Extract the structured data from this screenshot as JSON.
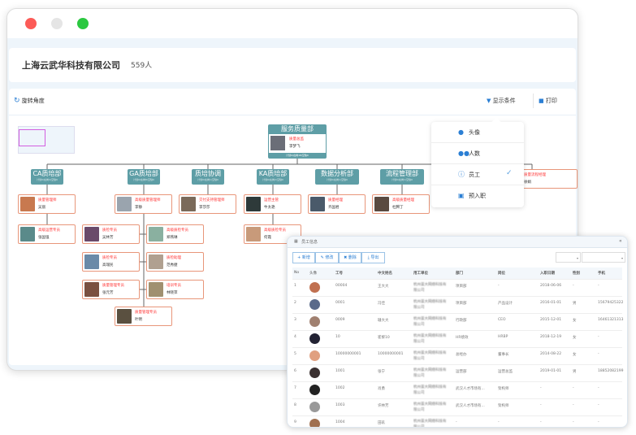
{
  "header": {
    "company": "上海云武华科技有限公司",
    "count": "559人"
  },
  "toolbar": {
    "rotate": "旋转角度",
    "filter": "显示条件",
    "print": "打印"
  },
  "display_menu": {
    "items": [
      {
        "label": "头像",
        "icon": "user-icon"
      },
      {
        "label": "人数",
        "icon": "users-icon"
      },
      {
        "label": "员工",
        "icon": "info-icon",
        "checked": true
      },
      {
        "label": "预入职",
        "icon": "briefcase-icon"
      }
    ]
  },
  "org": {
    "root": {
      "title": "服务质量部",
      "role": "质量总监",
      "name": "李梦飞",
      "stats": "计划0/在岗18/空缺0"
    },
    "depts": [
      {
        "title": "CA质培部",
        "stats": "计划0/在岗4/空缺0"
      },
      {
        "title": "GA质培部",
        "stats": "计划0/在岗8/空缺0"
      },
      {
        "title": "质培协调",
        "stats": "计划0/在岗1/空缺0"
      },
      {
        "title": "KA质培部",
        "stats": "计划0/在岗2/空缺0"
      },
      {
        "title": "数据分析部",
        "stats": "计划0/在岗1/空缺0"
      },
      {
        "title": "流程管理部",
        "stats": "计划0/在岗1/空缺0"
      }
    ],
    "people": [
      {
        "role": "质量管理师",
        "name": "吴丽"
      },
      {
        "role": "高级质量管理师",
        "name": "李静"
      },
      {
        "role": "交付支持管理师",
        "name": "李莎莎"
      },
      {
        "role": "运营主管",
        "name": "牛太艳"
      },
      {
        "role": "质量经理",
        "name": "齐国君"
      },
      {
        "role": "高级质量经理",
        "name": "杜腾丁"
      },
      {
        "role": "高级运营专员",
        "name": "张国强"
      },
      {
        "role": "质检专员",
        "name": "吴林芳"
      },
      {
        "role": "高级质检专员",
        "name": "郑燕琳"
      },
      {
        "role": "高级质检专员",
        "name": "何霞"
      },
      {
        "role": "质检专员",
        "name": "高瑞民"
      },
      {
        "role": "质检助理",
        "name": "范秀捷"
      },
      {
        "role": "质量管理专员",
        "name": "张元芳"
      },
      {
        "role": "培训专员",
        "name": "林晓萍"
      },
      {
        "role": "质量管理专员",
        "name": "叶明"
      },
      {
        "role": "质量流程经理",
        "name": "徐娟"
      }
    ]
  },
  "employee_panel": {
    "title": "员工信息",
    "buttons": [
      "新增",
      "修改",
      "删除",
      "导出"
    ],
    "columns": [
      "No",
      "头像",
      "工号",
      "中文姓名",
      "用工单位",
      "部门",
      "岗位",
      "入职日期",
      "性别",
      "手机"
    ],
    "rows": [
      [
        "1",
        "",
        "00004",
        "王大大",
        "杭州蛋大网络科技有限公司",
        "项目部",
        "-",
        "2018-06-06",
        "-",
        "-"
      ],
      [
        "2",
        "",
        "0001",
        "冯佳",
        "杭州蛋大网络科技有限公司",
        "项目部",
        "产品设计",
        "2016-01-01",
        "男",
        "15679425322"
      ],
      [
        "3",
        "",
        "0009",
        "珊大大",
        "杭州蛋大网络科技有限公司",
        "行政部",
        "CEO",
        "2015-12-01",
        "女",
        "16461321313"
      ],
      [
        "4",
        "",
        "10",
        "崔黎10",
        "杭州蛋大网络科技有限公司",
        "HR绩效",
        "HRBP",
        "2018-12-19",
        "女",
        "-"
      ],
      [
        "5",
        "",
        "10000000001",
        "10000000001",
        "杭州蛋大网络科技有限公司",
        "总经办",
        "董事长",
        "2014-08-22",
        "女",
        "-"
      ],
      [
        "6",
        "",
        "1001",
        "张宁",
        "杭州蛋大网络科技有限公司",
        "运营部",
        "运营总监",
        "2019-01-01",
        "男",
        "18852082199"
      ],
      [
        "7",
        "",
        "1002",
        "肖勇",
        "杭州蛋大网络科技有限公司",
        "武汉人才市场有...",
        "架构师",
        "-",
        "-",
        "-"
      ],
      [
        "8",
        "",
        "1003",
        "许林芳",
        "杭州蛋大网络科技有限公司",
        "武汉人才市场有...",
        "架构师",
        "-",
        "-",
        "-"
      ],
      [
        "9",
        "",
        "1004",
        "田玖",
        "杭州蛋大网络科技有限公司",
        "-",
        "-",
        "-",
        "-",
        "-"
      ]
    ]
  },
  "colors": {
    "dept": "#5e9ea6",
    "card_border": "#e8967a",
    "role": "#ff3333",
    "accent": "#2b7fd4"
  }
}
